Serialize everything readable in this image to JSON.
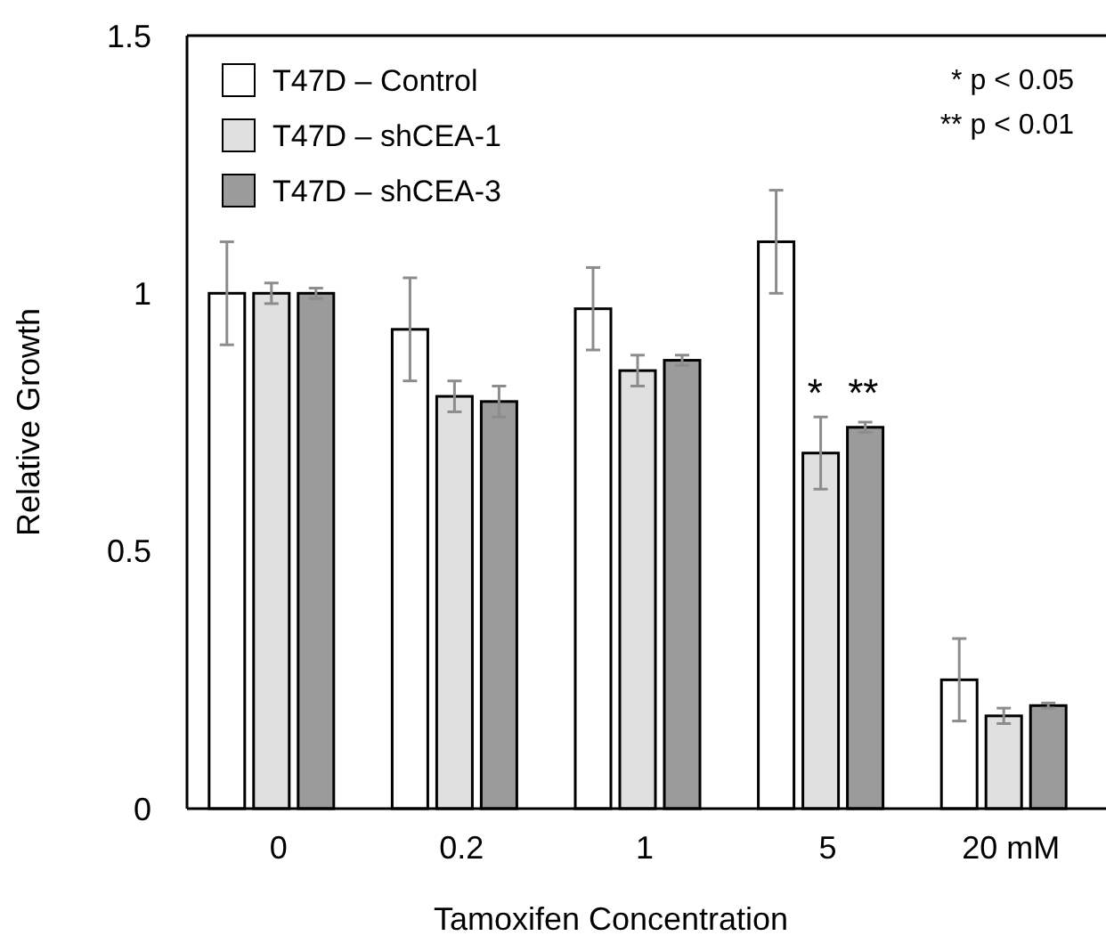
{
  "chart_data": {
    "type": "bar",
    "xlabel": "Tamoxifen Concentration",
    "ylabel": "Relative Growth",
    "categories": [
      "0",
      "0.2",
      "1",
      "5",
      "20 mM"
    ],
    "series": [
      {
        "name": "T47D – Control",
        "color": "#ffffff",
        "values": [
          1.0,
          0.93,
          0.97,
          1.1,
          0.25
        ],
        "errors": [
          0.1,
          0.1,
          0.08,
          0.1,
          0.08
        ]
      },
      {
        "name": "T47D – shCEA-1",
        "color": "#e0e0e0",
        "values": [
          1.0,
          0.8,
          0.85,
          0.69,
          0.18
        ],
        "errors": [
          0.02,
          0.03,
          0.03,
          0.07,
          0.015
        ]
      },
      {
        "name": "T47D – shCEA-3",
        "color": "#9b9b9b",
        "values": [
          1.0,
          0.79,
          0.87,
          0.74,
          0.2
        ],
        "errors": [
          0.01,
          0.03,
          0.01,
          0.01,
          0.005
        ]
      }
    ],
    "ylim": [
      0,
      1.5
    ],
    "yticks": [
      0,
      0.5,
      1,
      1.5
    ],
    "grid": false,
    "legend": "top left",
    "annotations": [
      {
        "text": "* **",
        "x": "5",
        "y": 0.76
      },
      "* p < 0.05",
      "** p < 0.01"
    ]
  }
}
